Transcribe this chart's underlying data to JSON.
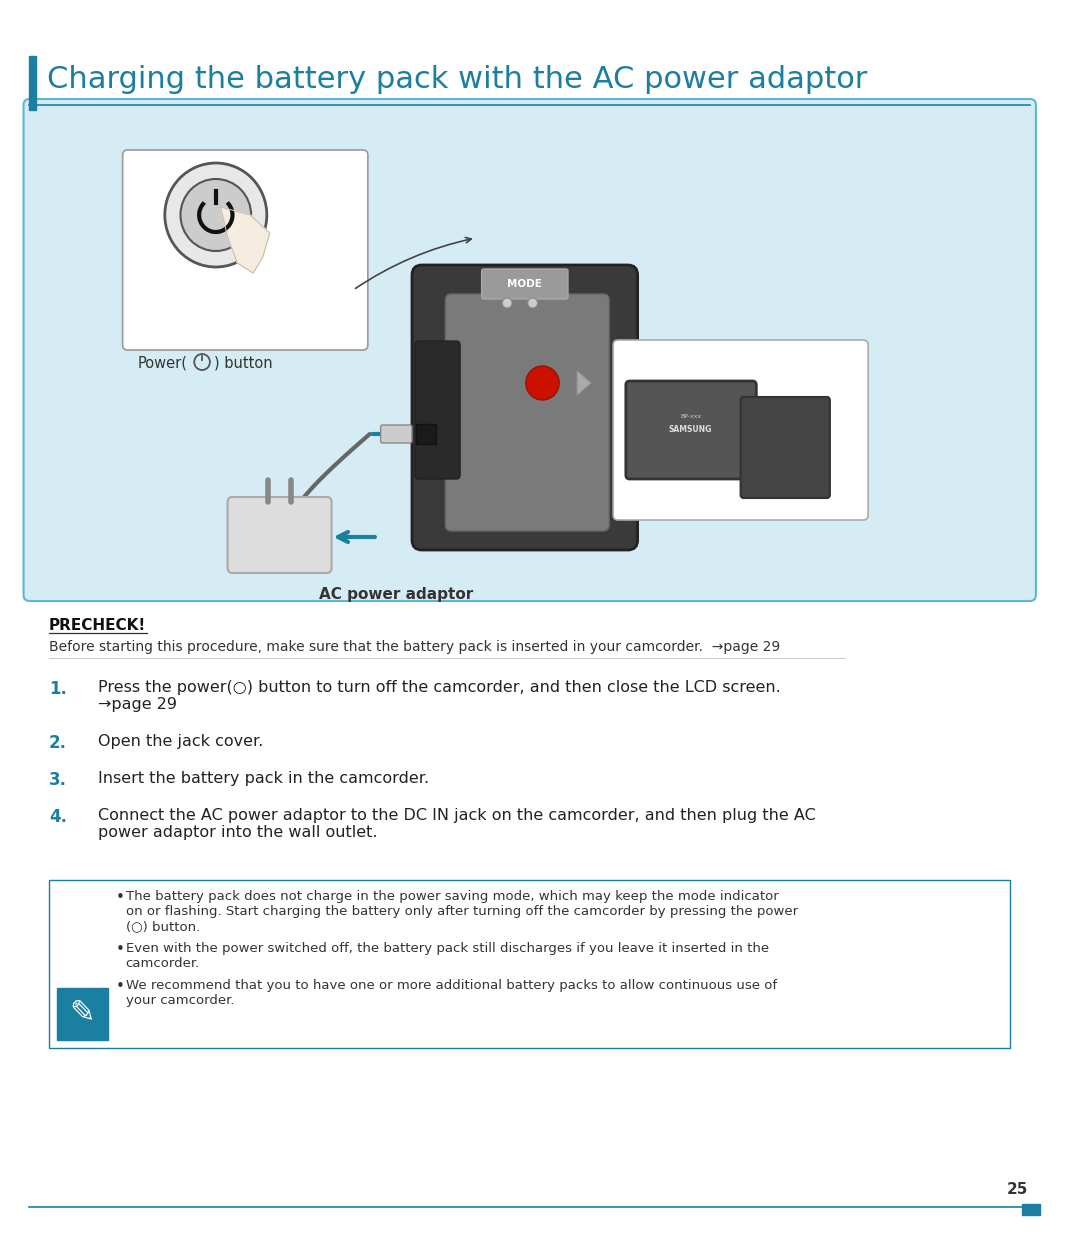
{
  "title": "Charging the battery pack with the AC power adaptor",
  "title_color": "#1a7fa0",
  "title_bar_color": "#1a7fa0",
  "title_underline_color": "#1a7fa0",
  "bg_color": "#ffffff",
  "diagram_bg": "#d6ecf5",
  "diagram_border": "#5bb8d4",
  "precheck_label": "PRECHECK!",
  "precheck_line": "Before starting this procedure, make sure that the battery pack is inserted in your camcorder.  →page 29",
  "steps": [
    {
      "num": "1.",
      "num_color": "#1a7fa0",
      "text": "Press the power(○) button to turn off the camcorder, and then close the LCD screen.\n→page 29"
    },
    {
      "num": "2.",
      "num_color": "#1a7fa0",
      "text": "Open the jack cover."
    },
    {
      "num": "3.",
      "num_color": "#1a7fa0",
      "text": "Insert the battery pack in the camcorder."
    },
    {
      "num": "4.",
      "num_color": "#1a7fa0",
      "text": "Connect the AC power adaptor to the DC IN jack on the camcorder, and then plug the AC\npower adaptor into the wall outlet."
    }
  ],
  "notes": [
    "The battery pack does not charge in the power saving mode, which may keep the mode indicator\non or flashing. Start charging the battery only after turning off the camcorder by pressing the power\n(○) button.",
    "Even with the power switched off, the battery pack still discharges if you leave it inserted in the\ncamcorder.",
    "We recommend that you to have one or more additional battery packs to allow continuous use of\nyour camcorder."
  ],
  "page_number": "25",
  "footer_line_color": "#1a7fa0",
  "note_border_color": "#1a7fa0",
  "note_icon_bg": "#1a7fa0"
}
